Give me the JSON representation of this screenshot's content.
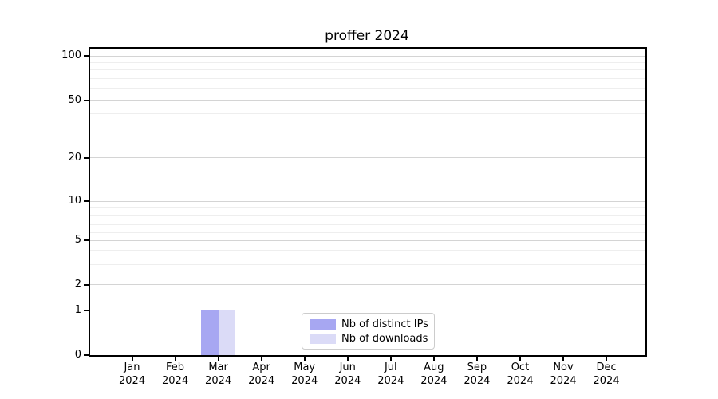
{
  "title": "proffer 2024",
  "chart_data": {
    "type": "bar",
    "title": "proffer 2024",
    "categories": [
      "Jan 2024",
      "Feb 2024",
      "Mar 2024",
      "Apr 2024",
      "May 2024",
      "Jun 2024",
      "Jul 2024",
      "Aug 2024",
      "Sep 2024",
      "Oct 2024",
      "Nov 2024",
      "Dec 2024"
    ],
    "series": [
      {
        "name": "Nb of distinct IPs",
        "color": "#a7a7f2",
        "values": [
          0,
          0,
          1,
          0,
          0,
          0,
          0,
          0,
          0,
          0,
          0,
          0
        ]
      },
      {
        "name": "Nb of downloads",
        "color": "#dbdbf7",
        "values": [
          0,
          0,
          1,
          0,
          0,
          0,
          0,
          0,
          0,
          0,
          0,
          0
        ]
      }
    ],
    "xlabel": "",
    "ylabel": "",
    "ylim": [
      0,
      100
    ],
    "yaxis_major_ticks": [
      100,
      50,
      20,
      10,
      5,
      2,
      1,
      0
    ],
    "yaxis_minor_ticks": [
      90,
      80,
      70,
      60,
      40,
      30,
      9,
      8,
      7,
      6,
      4,
      3
    ],
    "yaxis_scale": "log above 1, linear segment down to 0",
    "grid": "horizontal major and minor gridlines",
    "legend_position": "inside bottom-center"
  },
  "x_axis": {
    "ticks": [
      {
        "month": "Jan",
        "year": "2024"
      },
      {
        "month": "Feb",
        "year": "2024"
      },
      {
        "month": "Mar",
        "year": "2024"
      },
      {
        "month": "Apr",
        "year": "2024"
      },
      {
        "month": "May",
        "year": "2024"
      },
      {
        "month": "Jun",
        "year": "2024"
      },
      {
        "month": "Jul",
        "year": "2024"
      },
      {
        "month": "Aug",
        "year": "2024"
      },
      {
        "month": "Sep",
        "year": "2024"
      },
      {
        "month": "Oct",
        "year": "2024"
      },
      {
        "month": "Nov",
        "year": "2024"
      },
      {
        "month": "Dec",
        "year": "2024"
      }
    ]
  },
  "legend": {
    "entries": [
      "Nb of distinct IPs",
      "Nb of downloads"
    ]
  },
  "colors": {
    "axis": "#000000",
    "grid_major": "#d4d4d4",
    "grid_minor": "#eeeeee",
    "background": "#ffffff",
    "legend_border": "#cccccc",
    "bar_distinct_ips": "#a7a7f2",
    "bar_downloads": "#dbdbf7"
  }
}
